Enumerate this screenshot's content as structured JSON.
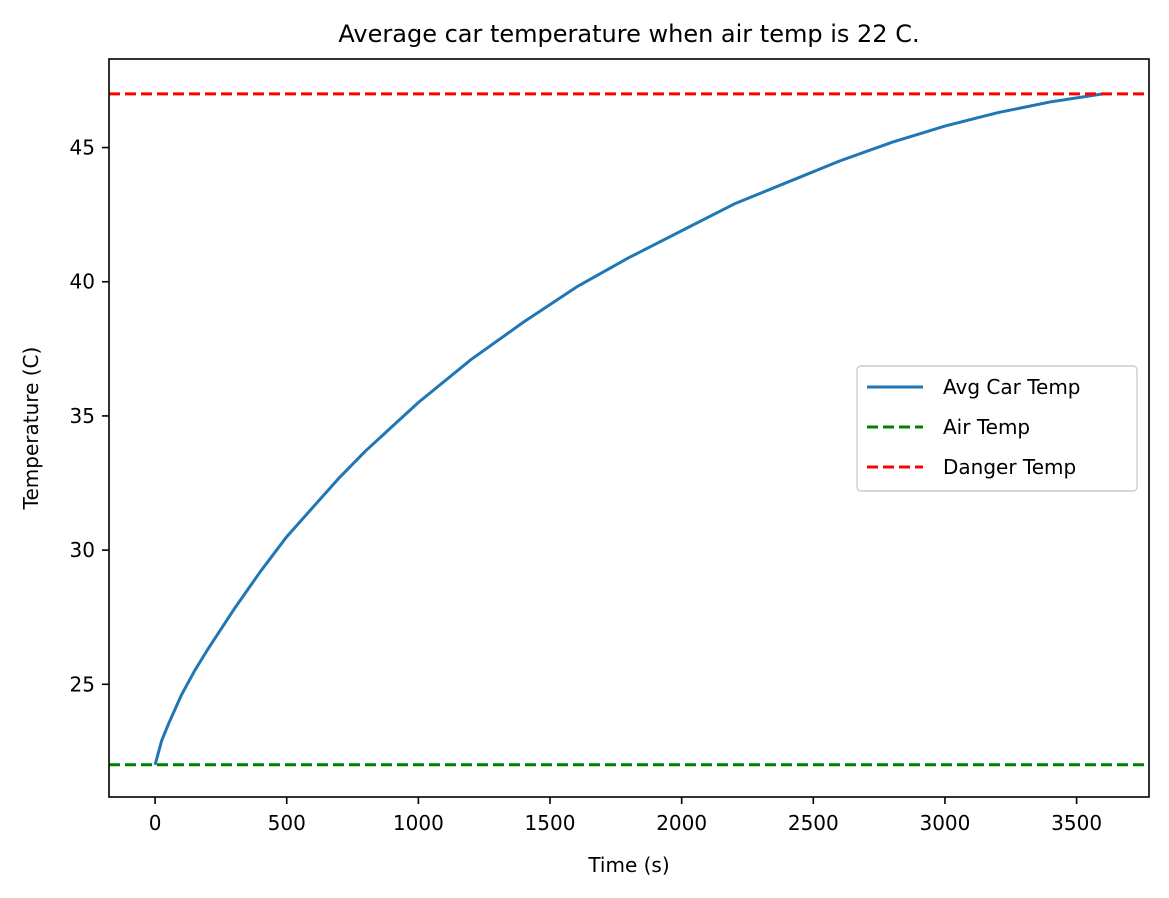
{
  "chart_data": {
    "type": "line",
    "title": "Average car temperature when air temp is 22 C.",
    "xlabel": "Time (s)",
    "ylabel": "Temperature (C)",
    "xlim": [
      -175,
      3775
    ],
    "ylim": [
      20.8,
      48.3
    ],
    "xticks": [
      0,
      500,
      1000,
      1500,
      2000,
      2500,
      3000,
      3500
    ],
    "yticks": [
      25,
      30,
      35,
      40,
      45
    ],
    "grid": false,
    "legend_position": "center-right",
    "series": [
      {
        "name": "Avg Car Temp",
        "style": "solid",
        "color": "#1f77b4",
        "x": [
          0,
          25,
          50,
          100,
          150,
          200,
          300,
          400,
          500,
          600,
          700,
          800,
          900,
          1000,
          1200,
          1400,
          1600,
          1800,
          2000,
          2200,
          2400,
          2600,
          2800,
          3000,
          3200,
          3400,
          3600
        ],
        "y": [
          22.0,
          22.9,
          23.5,
          24.6,
          25.5,
          26.3,
          27.8,
          29.2,
          30.5,
          31.6,
          32.7,
          33.7,
          34.6,
          35.5,
          37.1,
          38.5,
          39.8,
          40.9,
          41.9,
          42.9,
          43.7,
          44.5,
          45.2,
          45.8,
          46.3,
          46.7,
          47.0
        ]
      },
      {
        "name": "Air Temp",
        "style": "dashed",
        "color": "#008000",
        "constant": 22
      },
      {
        "name": "Danger Temp",
        "style": "dashed",
        "color": "#ff0000",
        "constant": 47
      }
    ]
  }
}
